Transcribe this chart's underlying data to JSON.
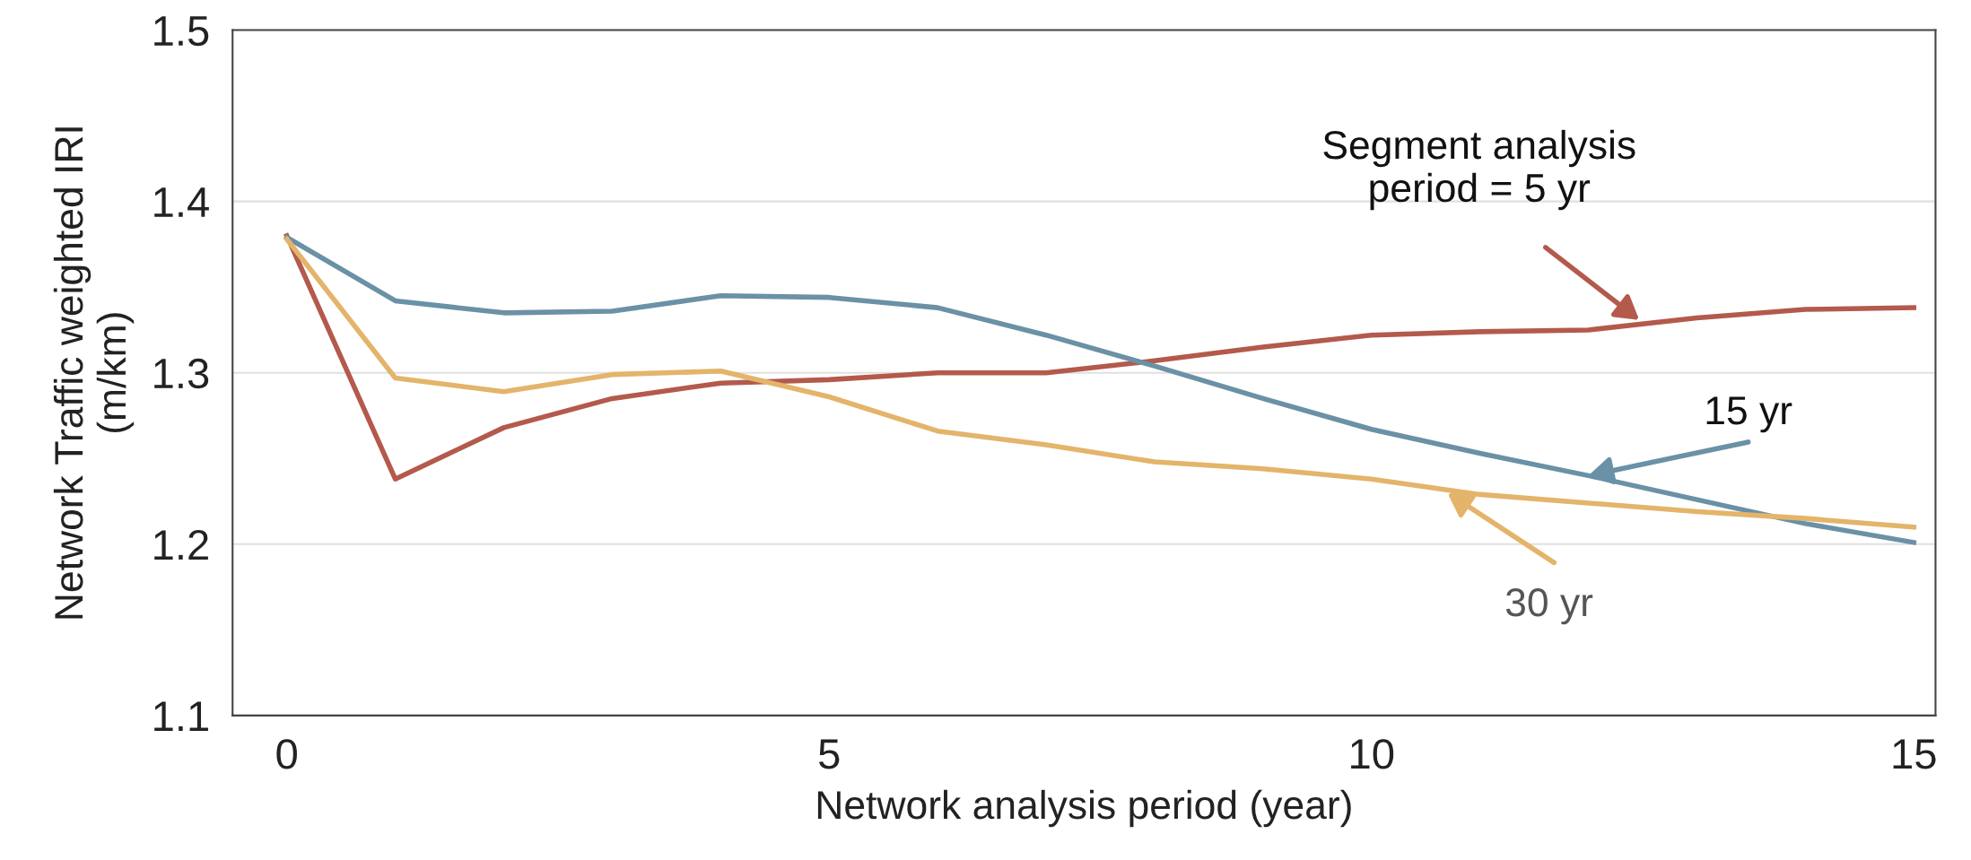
{
  "chart_data": {
    "type": "line",
    "xlabel": "Network analysis period (year)",
    "ylabel": "Network Traffic weighted IRI\n(m/km)",
    "x": [
      0,
      1,
      2,
      3,
      4,
      5,
      6,
      7,
      8,
      9,
      10,
      11,
      12,
      13,
      14,
      15
    ],
    "series": [
      {
        "color": "#b35a4c",
        "values": [
          1.38,
          1.238,
          1.268,
          1.285,
          1.294,
          1.296,
          1.3,
          1.3,
          1.307,
          1.315,
          1.322,
          1.324,
          1.325,
          1.332,
          1.337,
          1.338
        ]
      },
      {
        "color": "#6a91a6",
        "values": [
          1.379,
          1.342,
          1.335,
          1.336,
          1.345,
          1.344,
          1.338,
          1.322,
          1.304,
          1.285,
          1.267,
          1.253,
          1.24,
          1.226,
          1.212,
          1.201
        ]
      },
      {
        "color": "#e3b46a",
        "values": [
          1.378,
          1.297,
          1.289,
          1.299,
          1.301,
          1.286,
          1.266,
          1.258,
          1.248,
          1.244,
          1.238,
          1.229,
          1.224,
          1.219,
          1.215,
          1.21
        ]
      }
    ],
    "annotations": [
      "Segment analysis\nperiod = 5 yr",
      {
        "text": "15 yr",
        "x": 12,
        "y": 1.24
      },
      {
        "text": "30 yr",
        "x": 10.7,
        "y": 1.23
      }
    ],
    "xlim": [
      -0.5,
      15.2
    ],
    "ylim": [
      1.1,
      1.5
    ],
    "xticks": [
      0,
      5,
      10,
      15
    ],
    "yticks": [
      1.1,
      1.2,
      1.3,
      1.4,
      1.5
    ],
    "grid": "y",
    "marker": "none",
    "line_style": "solid",
    "legend": false
  }
}
